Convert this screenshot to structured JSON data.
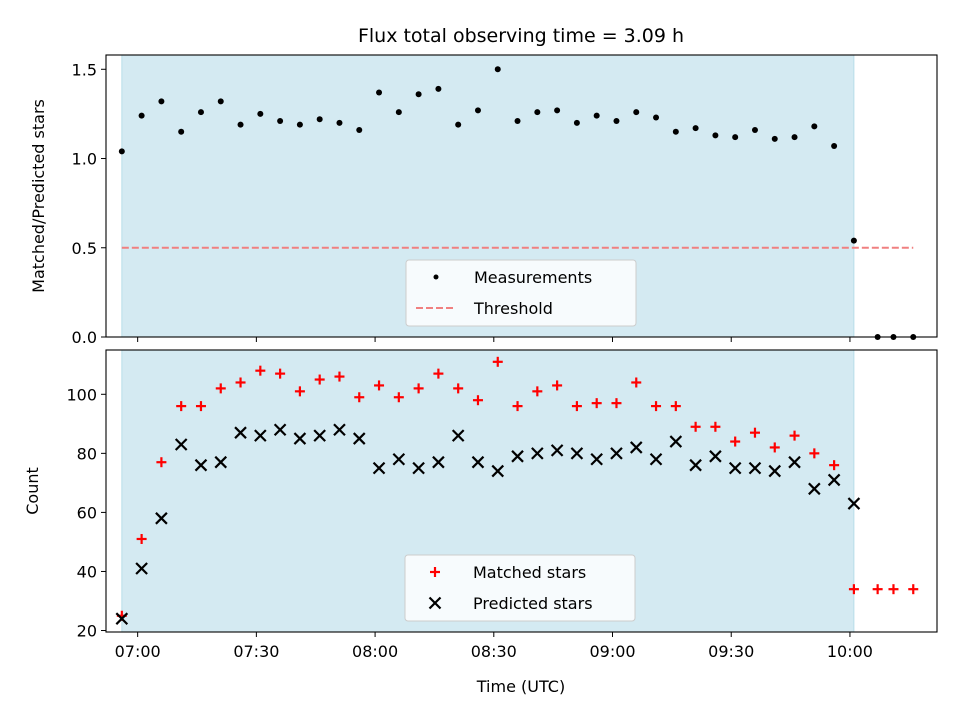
{
  "figure": {
    "title": "Flux total observing time = 3.09 h",
    "xlabel": "Time (UTC)"
  },
  "chart_data": [
    {
      "type": "scatter",
      "panel": "top",
      "ylabel": "Matched/Predicted stars",
      "xlim": [
        "06:52",
        "10:22"
      ],
      "ylim": [
        0,
        1.58
      ],
      "yticks": [
        0.0,
        0.5,
        1.0,
        1.5
      ],
      "ytick_labels": [
        "0.0",
        "0.5",
        "1.0",
        "1.5"
      ],
      "observing_window": {
        "start": "06:56",
        "end": "10:01",
        "color": "#add8e6"
      },
      "legend": {
        "placement": "bottom-center"
      },
      "series": [
        {
          "name": "Measurements",
          "marker": "dot",
          "color": "#000000",
          "x": [
            "06:56",
            "07:01",
            "07:06",
            "07:11",
            "07:16",
            "07:21",
            "07:26",
            "07:31",
            "07:36",
            "07:41",
            "07:46",
            "07:51",
            "07:56",
            "08:01",
            "08:06",
            "08:11",
            "08:16",
            "08:21",
            "08:26",
            "08:31",
            "08:36",
            "08:41",
            "08:46",
            "08:51",
            "08:56",
            "09:01",
            "09:06",
            "09:11",
            "09:16",
            "09:21",
            "09:26",
            "09:31",
            "09:36",
            "09:41",
            "09:46",
            "09:51",
            "09:56",
            "10:01",
            "10:07",
            "10:11",
            "10:16"
          ],
          "y": [
            1.04,
            1.24,
            1.32,
            1.15,
            1.26,
            1.32,
            1.19,
            1.25,
            1.21,
            1.19,
            1.22,
            1.2,
            1.16,
            1.37,
            1.26,
            1.36,
            1.39,
            1.19,
            1.27,
            1.5,
            1.21,
            1.26,
            1.27,
            1.2,
            1.24,
            1.21,
            1.26,
            1.23,
            1.15,
            1.17,
            1.13,
            1.12,
            1.16,
            1.11,
            1.12,
            1.18,
            1.07,
            0.54,
            0.0,
            0.0,
            0.0
          ]
        },
        {
          "name": "Threshold",
          "marker": "dashed-line",
          "color": "#f08080",
          "x": [
            "06:56",
            "10:16"
          ],
          "y": [
            0.5,
            0.5
          ]
        }
      ]
    },
    {
      "type": "scatter",
      "panel": "bottom",
      "ylabel": "Count",
      "xlim": [
        "06:52",
        "10:22"
      ],
      "ylim": [
        19.5,
        115
      ],
      "yticks": [
        20,
        40,
        60,
        80,
        100
      ],
      "xticks": [
        "07:00",
        "07:30",
        "08:00",
        "08:30",
        "09:00",
        "09:30",
        "10:00"
      ],
      "observing_window": {
        "start": "06:56",
        "end": "10:01",
        "color": "#add8e6"
      },
      "legend": {
        "placement": "bottom-center"
      },
      "series": [
        {
          "name": "Matched stars",
          "marker": "plus",
          "color": "#ff0000",
          "x": [
            "06:56",
            "07:01",
            "07:06",
            "07:11",
            "07:16",
            "07:21",
            "07:26",
            "07:31",
            "07:36",
            "07:41",
            "07:46",
            "07:51",
            "07:56",
            "08:01",
            "08:06",
            "08:11",
            "08:16",
            "08:21",
            "08:26",
            "08:31",
            "08:36",
            "08:41",
            "08:46",
            "08:51",
            "08:56",
            "09:01",
            "09:06",
            "09:11",
            "09:16",
            "09:21",
            "09:26",
            "09:31",
            "09:36",
            "09:41",
            "09:46",
            "09:51",
            "09:56",
            "10:01",
            "10:07",
            "10:11",
            "10:16"
          ],
          "y": [
            25,
            51,
            77,
            96,
            96,
            102,
            104,
            108,
            107,
            101,
            105,
            106,
            99,
            103,
            99,
            102,
            107,
            102,
            98,
            111,
            96,
            101,
            103,
            96,
            97,
            97,
            104,
            96,
            96,
            89,
            89,
            84,
            87,
            82,
            86,
            80,
            76,
            34,
            34,
            34,
            34
          ]
        },
        {
          "name": "Predicted stars",
          "marker": "x",
          "color": "#000000",
          "x": [
            "06:56",
            "07:01",
            "07:06",
            "07:11",
            "07:16",
            "07:21",
            "07:26",
            "07:31",
            "07:36",
            "07:41",
            "07:46",
            "07:51",
            "07:56",
            "08:01",
            "08:06",
            "08:11",
            "08:16",
            "08:21",
            "08:26",
            "08:31",
            "08:36",
            "08:41",
            "08:46",
            "08:51",
            "08:56",
            "09:01",
            "09:06",
            "09:11",
            "09:16",
            "09:21",
            "09:26",
            "09:31",
            "09:36",
            "09:41",
            "09:46",
            "09:51",
            "09:56",
            "10:01"
          ],
          "y": [
            24,
            41,
            58,
            83,
            76,
            77,
            87,
            86,
            88,
            85,
            86,
            88,
            85,
            75,
            78,
            75,
            77,
            86,
            77,
            74,
            79,
            80,
            81,
            80,
            78,
            80,
            82,
            78,
            84,
            76,
            79,
            75,
            75,
            74,
            77,
            68,
            71,
            63
          ]
        }
      ]
    }
  ]
}
